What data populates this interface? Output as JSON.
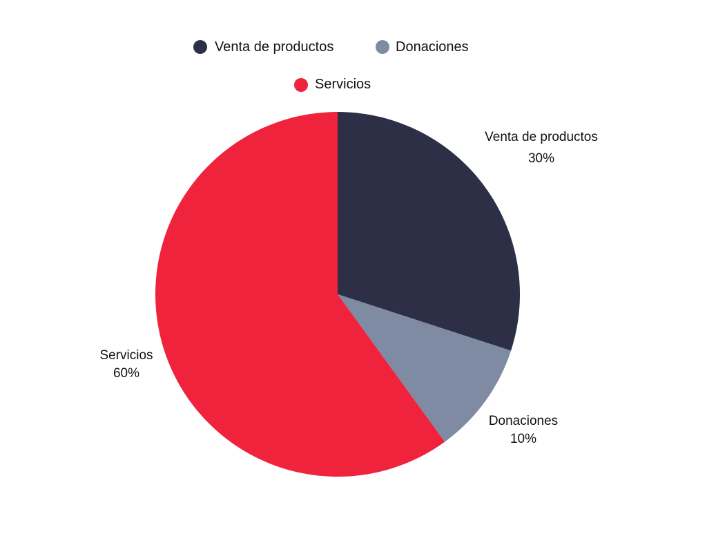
{
  "chart_data": {
    "type": "pie",
    "start_angle_deg": -90,
    "direction": "clockwise",
    "legend_position": "top",
    "slices": [
      {
        "label": "Venta de productos",
        "value": 30,
        "display": "30%",
        "color": "#2C2F45"
      },
      {
        "label": "Donaciones",
        "value": 10,
        "display": "10%",
        "color": "#7F8AA3"
      },
      {
        "label": "Servicios",
        "value": 60,
        "display": "60%",
        "color": "#EF233C"
      }
    ],
    "legend": [
      {
        "label": "Venta de productos",
        "color": "#2C2F45"
      },
      {
        "label": "Donaciones",
        "color": "#7F8AA3"
      },
      {
        "label": "Servicios",
        "color": "#EF233C"
      }
    ]
  }
}
